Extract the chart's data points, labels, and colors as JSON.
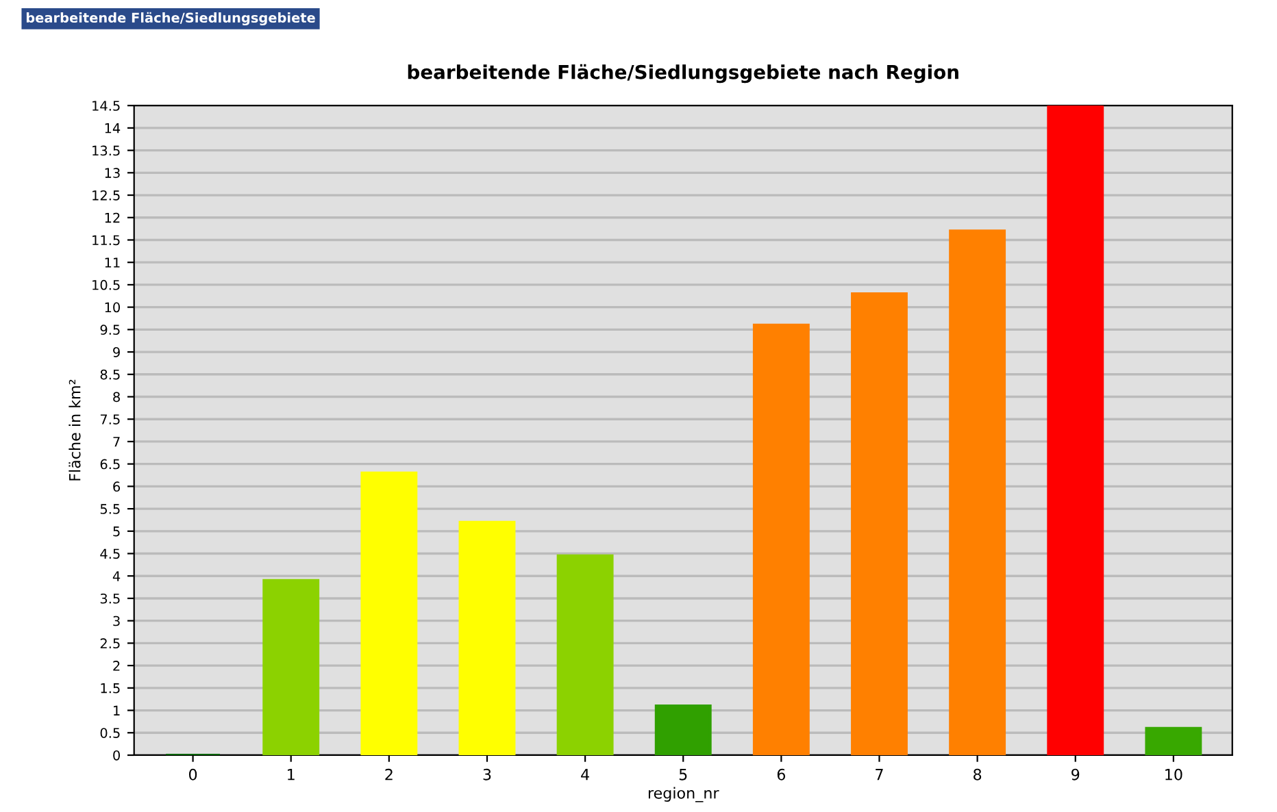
{
  "chart_data": {
    "type": "bar",
    "title": "bearbeitende Fläche/Siedlungsgebiete nach Region",
    "xlabel": "region_nr",
    "ylabel": "Fläche in km²",
    "annotations": [
      "bearbeitende Fläche/Siedlungsgebiete"
    ],
    "categories": [
      "0",
      "1",
      "2",
      "3",
      "4",
      "5",
      "6",
      "7",
      "8",
      "9",
      "10"
    ],
    "values": [
      0,
      3.9,
      6.3,
      5.2,
      4.45,
      1.1,
      9.6,
      10.3,
      11.7,
      14.5,
      0.6
    ],
    "colors": [
      "#006400",
      "#8cd200",
      "#ffff00",
      "#ffff00",
      "#8cd200",
      "#30a000",
      "#ff8000",
      "#ff8000",
      "#ff8000",
      "#ff0000",
      "#38a800"
    ],
    "ylim": [
      0,
      14.5
    ],
    "yticks": [
      0,
      0.5,
      1,
      1.5,
      2,
      2.5,
      3,
      3.5,
      4,
      4.5,
      5,
      5.5,
      6,
      6.5,
      7,
      7.5,
      8,
      8.5,
      9,
      9.5,
      10,
      10.5,
      11,
      11.5,
      12,
      12.5,
      13,
      13.5,
      14,
      14.5
    ],
    "grid": "y",
    "legend": false
  }
}
